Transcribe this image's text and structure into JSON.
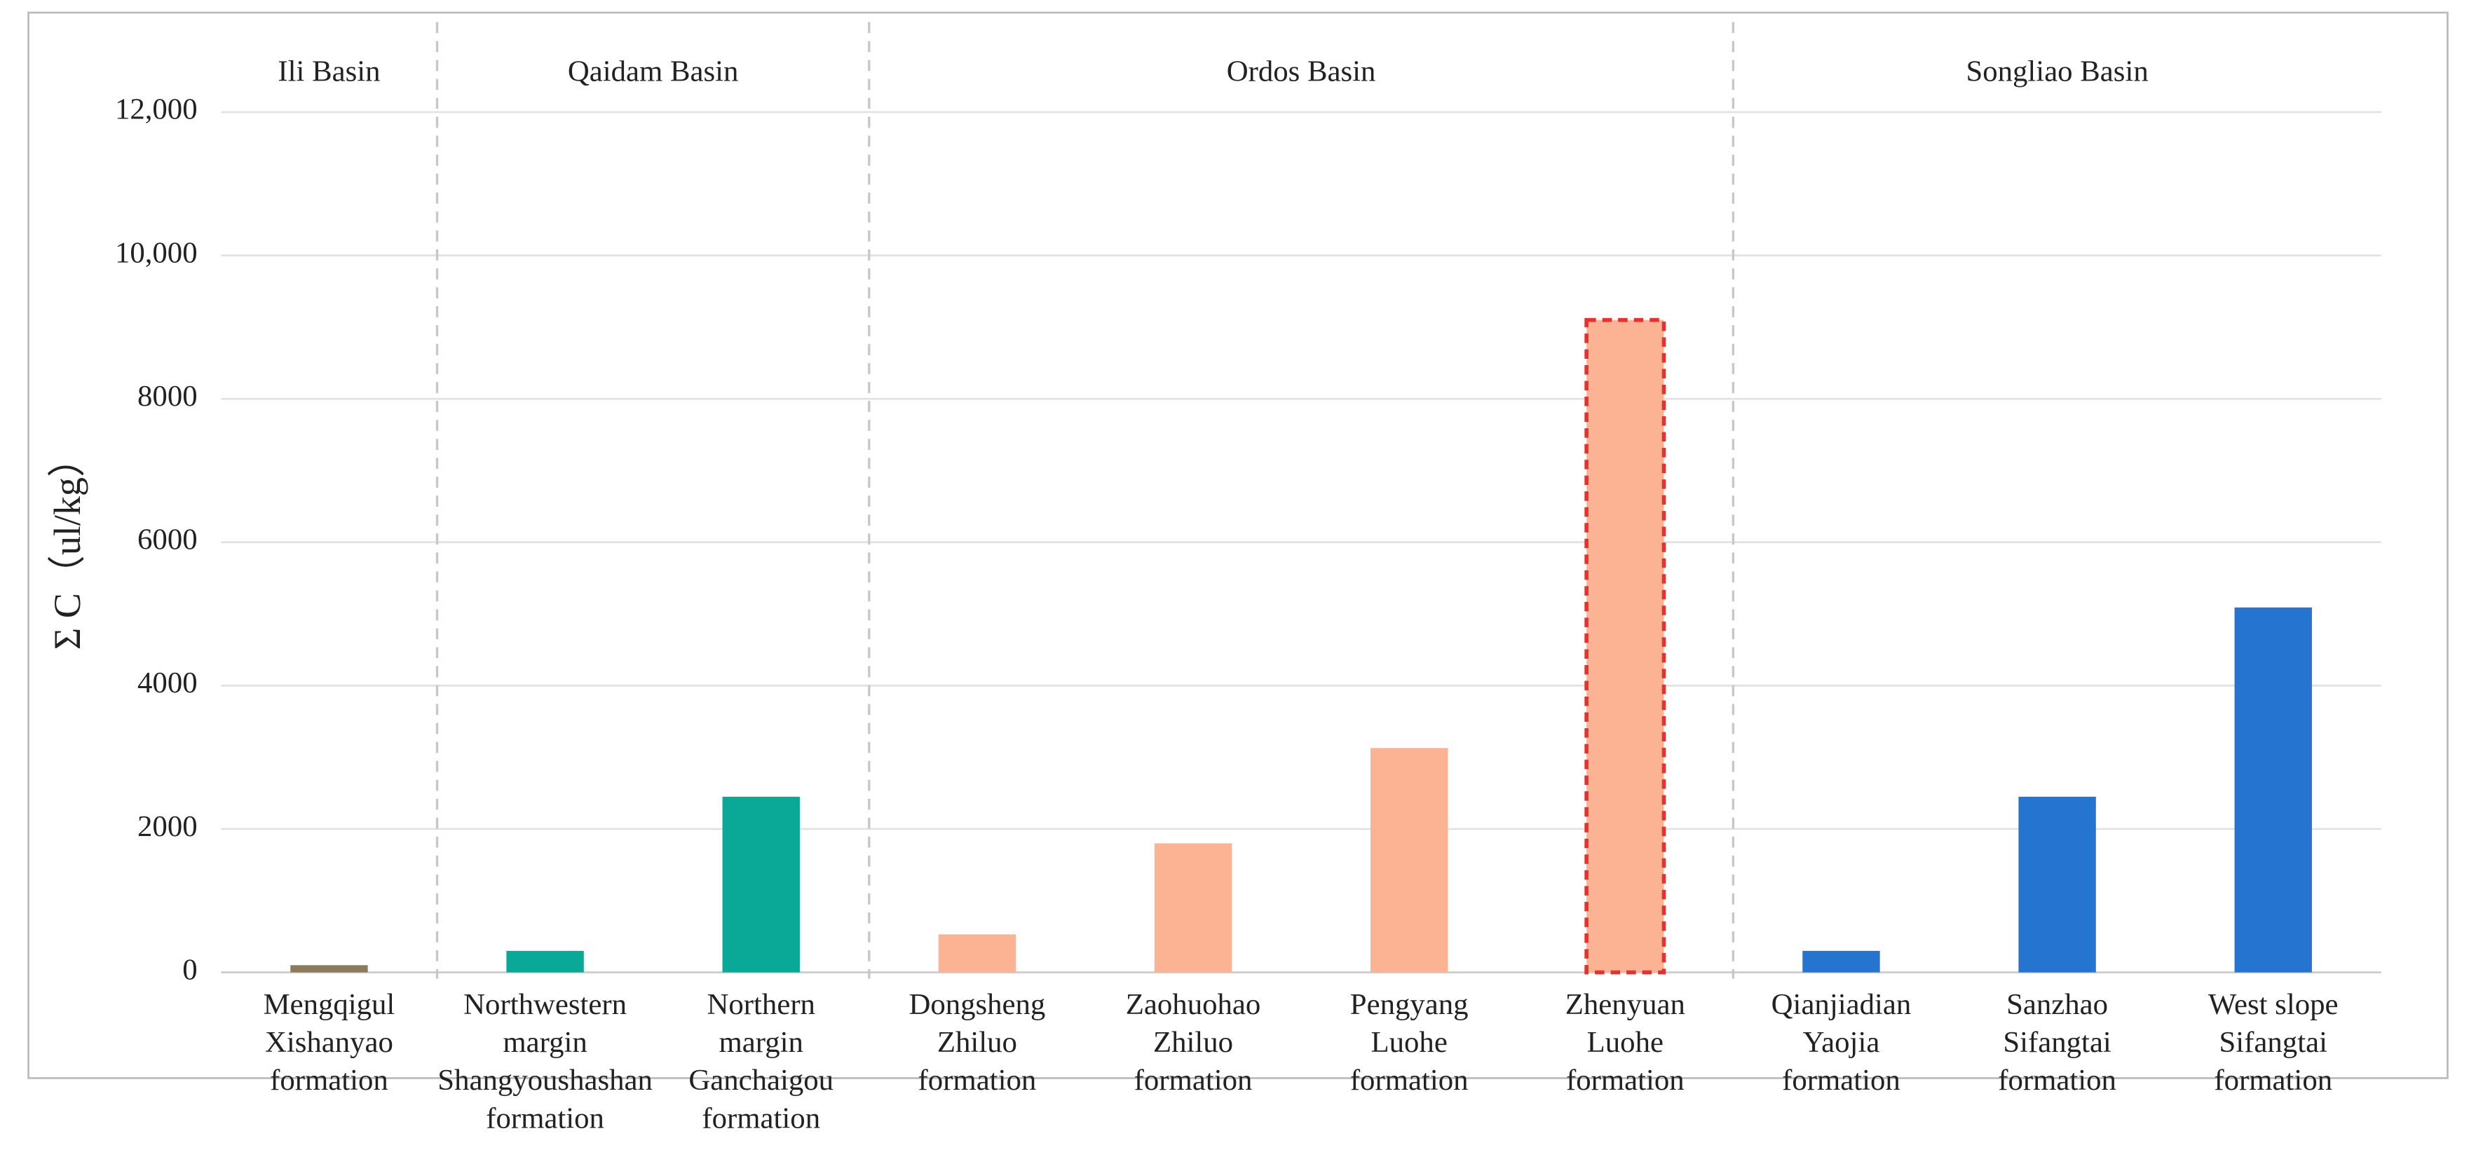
{
  "chart_data": {
    "type": "bar",
    "y_label": "Σ C（ul/kg）",
    "groups": [
      {
        "name": "Ili Basin",
        "count": 1
      },
      {
        "name": "Qaidam Basin",
        "count": 2
      },
      {
        "name": "Ordos Basin",
        "count": 4
      },
      {
        "name": "Songliao Basin",
        "count": 3
      }
    ],
    "categories": [
      [
        "Mengqigul",
        "Xishanyao",
        "formation"
      ],
      [
        "Northwestern",
        "margin",
        "Shangyoushashan",
        "formation"
      ],
      [
        "Northern",
        "margin",
        "Ganchaigou",
        "formation"
      ],
      [
        "Dongsheng",
        "Zhiluo",
        "formation"
      ],
      [
        "Zaohuohao",
        "Zhiluo",
        "formation"
      ],
      [
        "Pengyang",
        "Luohe",
        "formation"
      ],
      [
        "Zhenyuan",
        "Luohe",
        "formation"
      ],
      [
        "Qianjiadian",
        "Yaojia",
        "formation"
      ],
      [
        "Sanzhao",
        "Sifangtai",
        "formation"
      ],
      [
        "West slope",
        "Sifangtai",
        "formation"
      ]
    ],
    "values": [
      100,
      300,
      2450,
      530,
      1800,
      3130,
      9100,
      300,
      2450,
      5090
    ],
    "colors": [
      "#8c7a5b",
      "#0aa896",
      "#0aa896",
      "#fbb393",
      "#fbb393",
      "#fbb393",
      "#fbb393",
      "#2574cf",
      "#2574cf",
      "#2574cf"
    ],
    "highlight": {
      "index": 6,
      "color": "#e8312f"
    },
    "ylim": [
      0,
      12000
    ],
    "yticks": [
      0,
      2000,
      4000,
      6000,
      8000,
      {
        "value": 10000,
        "label": "10,000"
      },
      {
        "value": 12000,
        "label": "12,000"
      }
    ],
    "grid": true
  }
}
